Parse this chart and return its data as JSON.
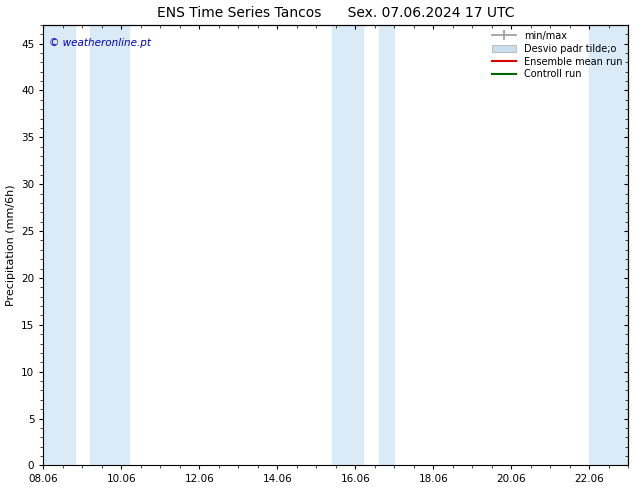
{
  "title": "ENS Time Series Tancos      Sex. 07.06.2024 17 UTC",
  "ylabel": "Precipitation (mm/6h)",
  "xlabel": "",
  "watermark": "© weatheronline.pt",
  "ylim": [
    0,
    47
  ],
  "yticks": [
    0,
    5,
    10,
    15,
    20,
    25,
    30,
    35,
    40,
    45
  ],
  "xlim_start": 0,
  "xlim_end": 15,
  "xtick_labels": [
    "08.06",
    "10.06",
    "12.06",
    "14.06",
    "16.06",
    "18.06",
    "20.06",
    "22.06"
  ],
  "xtick_positions": [
    0,
    2,
    4,
    6,
    8,
    10,
    12,
    14
  ],
  "background_color": "#ffffff",
  "plot_bg_color": "#ffffff",
  "shaded_regions": [
    {
      "x_start": 0.0,
      "x_end": 0.8,
      "color": "#daeaf7"
    },
    {
      "x_start": 1.2,
      "x_end": 2.2,
      "color": "#daeaf7"
    },
    {
      "x_start": 7.4,
      "x_end": 8.2,
      "color": "#daeaf7"
    },
    {
      "x_start": 8.6,
      "x_end": 9.0,
      "color": "#daeaf7"
    },
    {
      "x_start": 14.0,
      "x_end": 15.0,
      "color": "#daeaf7"
    }
  ],
  "legend_items": [
    {
      "label": "min/max",
      "color": "#999999",
      "type": "errorbar"
    },
    {
      "label": "Desvio padr tilde;o",
      "color": "#c8dff0",
      "type": "fill"
    },
    {
      "label": "Ensemble mean run",
      "color": "#dd0000",
      "type": "line"
    },
    {
      "label": "Controll run",
      "color": "#006600",
      "type": "line"
    }
  ],
  "title_fontsize": 10,
  "axis_fontsize": 8,
  "tick_fontsize": 7.5,
  "watermark_color": "#0000cc",
  "border_color": "#000000",
  "grid_color": "#cccccc",
  "grid_linewidth": 0.5
}
